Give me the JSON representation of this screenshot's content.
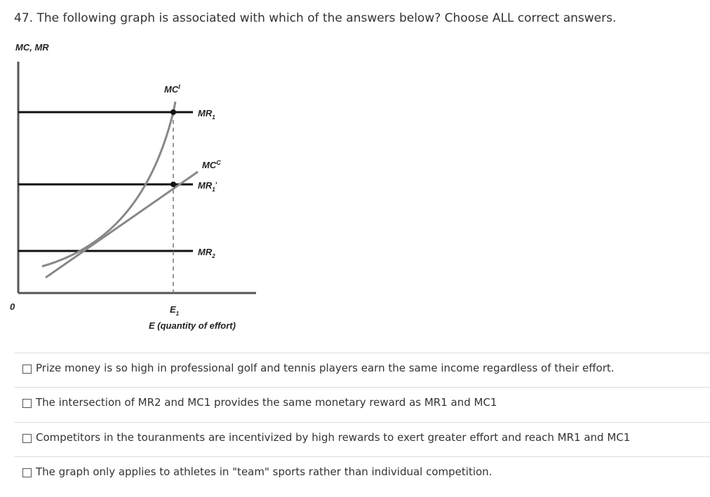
{
  "question": {
    "number": "47.",
    "text": "The following graph is associated with which of the answers below? Choose ALL correct answers."
  },
  "graph": {
    "y_axis_label": "MC, MR",
    "origin": "0",
    "mc_individual": {
      "base": "MC",
      "sup": "I"
    },
    "mr1": {
      "base": "MR",
      "sub": "1"
    },
    "mc_competitive": {
      "base": "MC",
      "sup": "C"
    },
    "mr1_prime": {
      "base": "MR",
      "sub": "1",
      "prime": "′"
    },
    "mr2": {
      "base": "MR",
      "sub": "2"
    },
    "e1": {
      "base": "E",
      "sub": "1"
    },
    "x_axis_label": "E (quantity of effort)"
  },
  "options": [
    "Prize money is so high in professional golf and tennis players earn the same income regardless of their effort.",
    "The intersection of MR2 and MC1 provides the same monetary reward as MR1 and MC1",
    "Competitors in the touranments are incentivized by high rewards to exert greater effort and reach MR1 and MC1",
    "The graph only applies to athletes in \"team\" sports rather than individual competition."
  ]
}
